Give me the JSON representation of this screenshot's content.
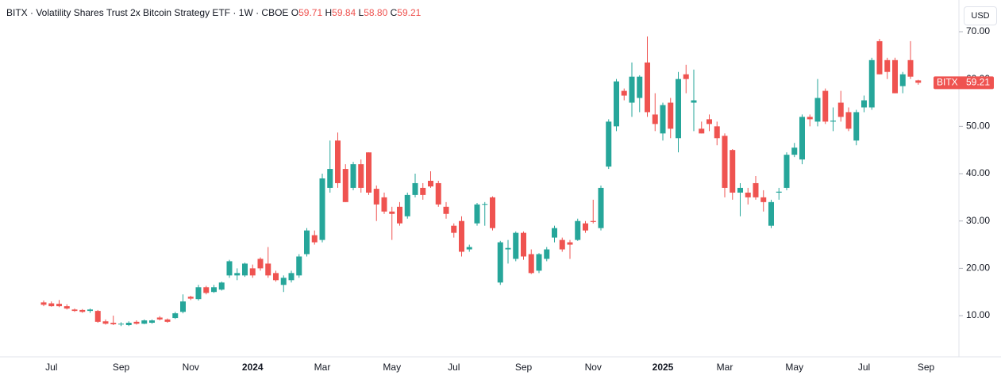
{
  "header": {
    "title": "BITX · Volatility Shares Trust 2x Bitcoin Strategy ETF · 1W · CBOE",
    "ohlc_names": [
      "O",
      "H",
      "L",
      "C"
    ],
    "ohlc_values": [
      "59.71",
      "59.84",
      "58.80",
      "59.21"
    ]
  },
  "currency_button": "USD",
  "chart_data": {
    "type": "candlestick",
    "price_label": "BITX",
    "up_color": "#26a69a",
    "down_color": "#ef5350",
    "grid": false,
    "categories": [
      null,
      "Jul",
      null,
      null,
      null,
      null,
      null,
      null,
      null,
      null,
      "Sep",
      null,
      null,
      null,
      null,
      null,
      null,
      null,
      null,
      "Nov",
      null,
      null,
      null,
      null,
      null,
      null,
      null,
      "2024",
      null,
      null,
      null,
      null,
      null,
      null,
      null,
      null,
      "Mar",
      null,
      null,
      null,
      null,
      null,
      null,
      null,
      null,
      "May",
      null,
      null,
      null,
      null,
      null,
      null,
      null,
      "Jul",
      null,
      null,
      null,
      null,
      null,
      null,
      null,
      null,
      "Sep",
      null,
      null,
      null,
      null,
      null,
      null,
      null,
      null,
      "Nov",
      null,
      null,
      null,
      null,
      null,
      null,
      null,
      null,
      "2025",
      null,
      null,
      null,
      null,
      null,
      null,
      null,
      "Mar",
      null,
      null,
      null,
      null,
      null,
      null,
      null,
      null,
      "May",
      null,
      null,
      null,
      null,
      null,
      null,
      null,
      null,
      "Jul",
      null,
      null,
      null,
      null,
      null,
      null,
      null,
      "Sep"
    ],
    "open": [
      12.8,
      12.6,
      12.5,
      12.0,
      11.3,
      11.2,
      11.0,
      11.0,
      8.8,
      8.5,
      8.2,
      8.0,
      8.7,
      8.3,
      8.5,
      9.6,
      9.2,
      9.5,
      10.8,
      14.0,
      13.5,
      16.0,
      15.0,
      15.5,
      18.5,
      18.5,
      18.5,
      20.0,
      22.0,
      21.0,
      19.0,
      16.5,
      17.5,
      18.5,
      23.0,
      27.0,
      26.0,
      37.0,
      47.0,
      41.0,
      37.0,
      42.0,
      44.5,
      36.8,
      35.0,
      32.0,
      33.0,
      31.0,
      35.5,
      37.0,
      38.5,
      38.0,
      33.0,
      29.0,
      30.0,
      24.0,
      29.5,
      33.5,
      35.0,
      17.0,
      24.0,
      22.0,
      27.5,
      23.0,
      19.5,
      22.0,
      26.5,
      26.0,
      25.5,
      26.0,
      29.5,
      30.0,
      28.5,
      41.5,
      50.0,
      57.5,
      55.0,
      56.0,
      63.5,
      52.5,
      48.5,
      55.0,
      47.5,
      61.0,
      55.0,
      49.5,
      51.5,
      50.0,
      48.0,
      45.0,
      36.0,
      36.0,
      38.0,
      35.0,
      29.0,
      36.0,
      37.0,
      44.0,
      43.0,
      52.0,
      51.0,
      57.5,
      51.0,
      55.0,
      53.0,
      47.0,
      54.0,
      54.0,
      68.0,
      64.0,
      64.0,
      58.5,
      64.0,
      59.71,
      null
    ],
    "high": [
      13.2,
      13.0,
      13.3,
      12.4,
      11.5,
      11.4,
      11.5,
      11.2,
      9.2,
      10.0,
      8.6,
      8.8,
      9.0,
      9.2,
      9.2,
      9.9,
      9.4,
      10.8,
      14.5,
      14.2,
      16.5,
      16.3,
      16.5,
      17.2,
      21.8,
      20.0,
      21.2,
      20.8,
      22.3,
      24.5,
      19.5,
      18.5,
      19.5,
      23.0,
      28.5,
      28.0,
      40.0,
      47.0,
      48.7,
      42.0,
      42.5,
      43.0,
      44.5,
      37.5,
      36.0,
      33.0,
      34.0,
      36.0,
      40.0,
      38.0,
      40.5,
      38.5,
      34.0,
      29.5,
      31.0,
      25.0,
      33.8,
      34.0,
      35.2,
      25.8,
      26.0,
      27.8,
      27.8,
      24.0,
      23.2,
      24.5,
      29.0,
      26.5,
      26.0,
      30.5,
      30.0,
      34.5,
      37.5,
      51.5,
      60.0,
      58.0,
      63.5,
      60.8,
      69.0,
      57.0,
      55.0,
      56.0,
      61.5,
      63.0,
      62.0,
      51.0,
      52.5,
      51.0,
      48.5,
      45.2,
      38.0,
      37.0,
      39.5,
      36.5,
      34.5,
      37.0,
      44.5,
      46.5,
      52.5,
      52.5,
      60.0,
      58.0,
      54.0,
      57.5,
      54.0,
      53.5,
      56.5,
      64.5,
      68.5,
      64.5,
      64.5,
      61.5,
      68.0,
      59.84,
      null
    ],
    "low": [
      12.0,
      11.9,
      11.8,
      11.3,
      10.8,
      10.6,
      10.6,
      8.5,
      8.1,
      8.0,
      7.8,
      7.8,
      8.1,
      8.2,
      8.3,
      9.0,
      8.5,
      9.3,
      10.5,
      13.3,
      13.2,
      14.5,
      14.8,
      15.3,
      18.0,
      17.5,
      18.2,
      18.0,
      19.5,
      18.0,
      17.2,
      15.0,
      17.0,
      18.0,
      22.5,
      25.0,
      25.5,
      36.0,
      37.0,
      34.0,
      36.5,
      36.0,
      35.5,
      30.0,
      31.5,
      26.0,
      29.0,
      30.5,
      35.0,
      34.5,
      37.0,
      33.0,
      30.5,
      26.5,
      22.5,
      23.5,
      29.0,
      29.0,
      28.0,
      16.5,
      21.0,
      21.5,
      21.8,
      18.8,
      19.0,
      21.5,
      25.5,
      23.5,
      22.0,
      25.8,
      27.5,
      29.5,
      28.0,
      41.0,
      49.0,
      55.5,
      52.0,
      53.0,
      52.0,
      49.0,
      47.0,
      47.5,
      44.5,
      57.0,
      49.0,
      48.5,
      49.0,
      46.0,
      35.0,
      34.5,
      31.0,
      33.5,
      34.5,
      32.0,
      28.5,
      34.5,
      36.5,
      43.5,
      42.0,
      50.0,
      50.0,
      50.5,
      49.0,
      51.0,
      49.0,
      46.0,
      53.0,
      53.5,
      61.0,
      60.0,
      57.0,
      57.0,
      60.0,
      58.8,
      null
    ],
    "close": [
      12.3,
      12.0,
      12.0,
      11.5,
      11.0,
      10.8,
      11.3,
      8.7,
      8.3,
      8.2,
      8.3,
      8.5,
      8.3,
      9.0,
      9.0,
      9.2,
      8.7,
      10.5,
      13.0,
      13.6,
      16.0,
      14.8,
      16.0,
      17.0,
      21.5,
      19.0,
      21.0,
      18.5,
      20.0,
      18.5,
      17.5,
      18.0,
      19.0,
      22.5,
      28.0,
      25.5,
      39.0,
      41.0,
      38.0,
      34.0,
      42.0,
      37.0,
      36.0,
      33.5,
      32.0,
      31.5,
      29.5,
      35.5,
      38.0,
      35.5,
      37.3,
      33.5,
      31.5,
      27.5,
      23.5,
      24.5,
      33.5,
      33.6,
      28.5,
      25.5,
      24.3,
      27.5,
      22.5,
      19.0,
      23.0,
      24.0,
      28.5,
      24.0,
      25.0,
      30.0,
      28.0,
      29.8,
      37.0,
      51.0,
      59.5,
      56.5,
      60.5,
      60.5,
      53.0,
      50.5,
      54.5,
      49.5,
      60.0,
      60.0,
      55.5,
      48.5,
      50.5,
      47.5,
      37.0,
      36.0,
      37.0,
      35.0,
      35.0,
      34.0,
      34.0,
      36.2,
      44.0,
      45.5,
      52.0,
      51.5,
      56.0,
      51.0,
      51.2,
      52.0,
      49.5,
      53.0,
      55.5,
      64.0,
      61.0,
      61.5,
      57.0,
      61.0,
      60.5,
      59.21,
      null
    ],
    "ylim": [
      1.3,
      76.7
    ],
    "yticks": [
      {
        "value": 10,
        "label": "10.00"
      },
      {
        "value": 20,
        "label": "20.00"
      },
      {
        "value": 30,
        "label": "30.00"
      },
      {
        "value": 40,
        "label": "40.00"
      },
      {
        "value": 50,
        "label": "50.00"
      },
      {
        "value": 60,
        "label": "60.00"
      },
      {
        "value": 70,
        "label": "70.00"
      }
    ]
  }
}
